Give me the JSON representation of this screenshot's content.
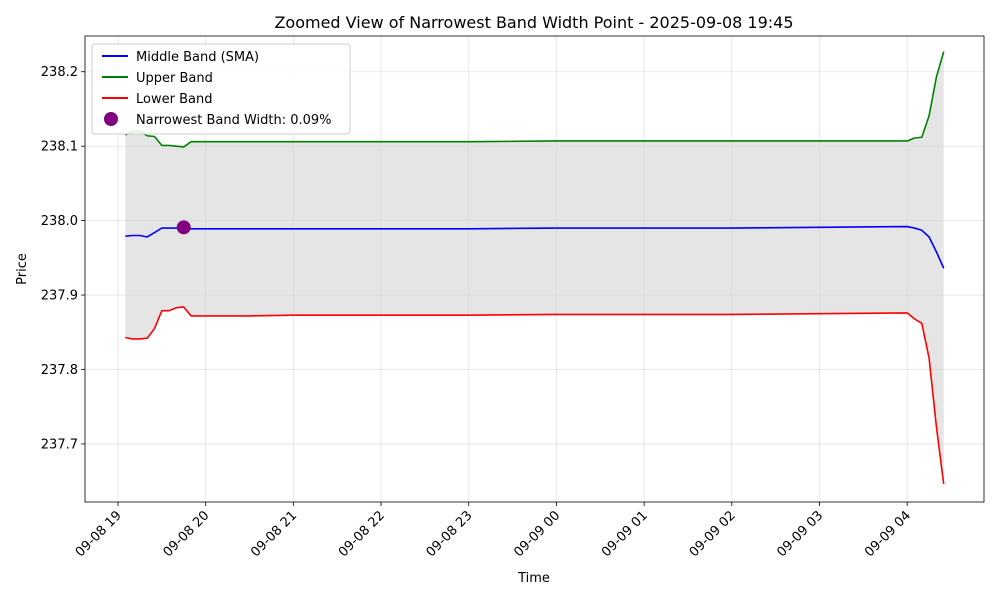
{
  "chart_data": {
    "type": "line",
    "title": "Zoomed View of Narrowest Band Width Point - 2025-09-08 19:45",
    "xlabel": "Time",
    "ylabel": "Price",
    "x_ticks": [
      "09-08 19",
      "09-08 20",
      "09-08 21",
      "09-08 22",
      "09-08 23",
      "09-09 00",
      "09-09 01",
      "09-09 02",
      "09-09 03",
      "09-09 04"
    ],
    "y_ticks": [
      "237.7",
      "237.8",
      "237.9",
      "238.0",
      "238.1",
      "238.2"
    ],
    "ylim": [
      237.622,
      238.248
    ],
    "xlim_hours_label": "hours since 09-08 19:00",
    "xlim": [
      -0.376,
      9.876
    ],
    "grid": true,
    "legend_position": "upper-left",
    "fill_color": "#d3d3d3",
    "x": [
      0.0833,
      0.1667,
      0.25,
      0.3333,
      0.4167,
      0.5,
      0.5833,
      0.6667,
      0.75,
      0.8333,
      1.0,
      1.5,
      2.0,
      3.0,
      4.0,
      5.0,
      6.0,
      7.0,
      8.0,
      9.0,
      9.0833,
      9.1667,
      9.25,
      9.3333,
      9.4167
    ],
    "series": [
      {
        "name": "Middle Band (SMA)",
        "color": "#0000ff",
        "values": [
          237.979,
          237.98,
          237.98,
          237.978,
          237.984,
          237.99,
          237.99,
          237.99,
          237.991,
          237.989,
          237.989,
          237.989,
          237.989,
          237.989,
          237.989,
          237.99,
          237.99,
          237.99,
          237.991,
          237.992,
          237.99,
          237.987,
          237.978,
          237.958,
          237.936
        ]
      },
      {
        "name": "Upper Band",
        "color": "#008000",
        "values": [
          238.115,
          238.12,
          238.12,
          238.114,
          238.113,
          238.101,
          238.101,
          238.1,
          238.099,
          238.106,
          238.106,
          238.106,
          238.106,
          238.106,
          238.106,
          238.107,
          238.107,
          238.107,
          238.107,
          238.107,
          238.111,
          238.112,
          238.141,
          238.193,
          238.227
        ]
      },
      {
        "name": "Lower Band",
        "color": "#ff0000",
        "values": [
          237.843,
          237.841,
          237.841,
          237.842,
          237.855,
          237.879,
          237.879,
          237.883,
          237.884,
          237.872,
          237.872,
          237.872,
          237.873,
          237.873,
          237.873,
          237.874,
          237.874,
          237.874,
          237.875,
          237.876,
          237.868,
          237.862,
          237.815,
          237.723,
          237.646
        ]
      }
    ],
    "marker": {
      "label": "Narrowest Band Width: 0.09%",
      "color": "#800080",
      "x": 0.75,
      "y": 237.991
    }
  }
}
